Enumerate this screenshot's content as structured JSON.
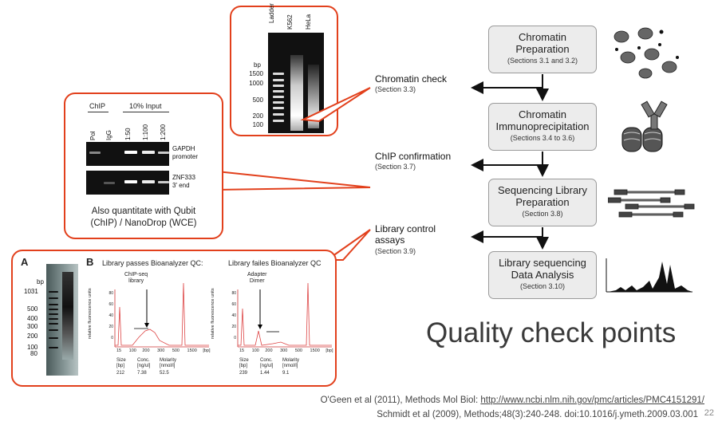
{
  "steps": [
    {
      "title": "Chromatin\nPreparation",
      "section": "(Sections 3.1 and 3.2)"
    },
    {
      "title": "Chromatin\nImmunoprecipitation",
      "section": "(Sections 3.4 to 3.6)"
    },
    {
      "title": "Sequencing Library\nPreparation",
      "section": "(Section 3.8)"
    },
    {
      "title": "Library sequencing\nData Analysis",
      "section": "(Section 3.10)"
    }
  ],
  "checks": [
    {
      "label": "Chromatin check",
      "section": "(Section 3.3)"
    },
    {
      "label": "ChIP confirmation",
      "section": "(Section 3.7)"
    },
    {
      "label": "Library control\nassays",
      "section": "(Section 3.9)"
    }
  ],
  "gel_top": {
    "lanes": [
      "Ladder",
      "K562",
      "HeLa"
    ],
    "unit": "bp",
    "markers": [
      "1500",
      "1000",
      "500",
      "200",
      "100"
    ]
  },
  "gel_chip": {
    "group1": "ChIP",
    "group2": "10% Input",
    "lanes": [
      "Pol",
      "IgG",
      "1:50",
      "1:100",
      "1:200"
    ],
    "row1": "GAPDH\npromoter",
    "row2": "ZNF333\n3' end",
    "note": "Also quantitate with Qubit\n(ChIP) / NanoDrop (WCE)"
  },
  "panel_a": {
    "letter": "A",
    "unit": "bp",
    "markers": [
      "1031",
      "500",
      "400",
      "300",
      "200",
      "100",
      "80"
    ]
  },
  "panel_b": {
    "letter": "B",
    "pass_title": "Library passes Bioanalyzer QC:",
    "fail_title": "Library failes Bioanalyzer QC",
    "pass_annot": "ChIP-seq\nlibrary",
    "fail_annot": "Adapter\nDimer",
    "ylabel": "relative fluorescence units",
    "yticks": [
      "80",
      "60",
      "40",
      "20",
      "0"
    ],
    "xticks": [
      "15",
      "100",
      "200",
      "300",
      "500",
      "1500"
    ],
    "xunit": "[bp]",
    "stats_headers": [
      "Size\n[bp]",
      "Conc.\n[ng/ul]",
      "Molarity\n[nmol/l]"
    ],
    "pass_stats": [
      "212",
      "7.38",
      "52.5"
    ],
    "fail_stats": [
      "239",
      "1.44",
      "9.1"
    ]
  },
  "quality_title": "Quality check points",
  "citation1_prefix": "O'Geen et al (2011), Methods Mol Biol: ",
  "citation1_link": "http://www.ncbi.nlm.nih.gov/pmc/articles/PMC4151291/",
  "citation2": "Schmidt et al (2009), Methods;48(3):240-248. doi:10.1016/j.ymeth.2009.03.001",
  "page_number": "22",
  "colors": {
    "accent": "#e2401c",
    "box_fill": "#ececec",
    "gel": "#111111"
  }
}
